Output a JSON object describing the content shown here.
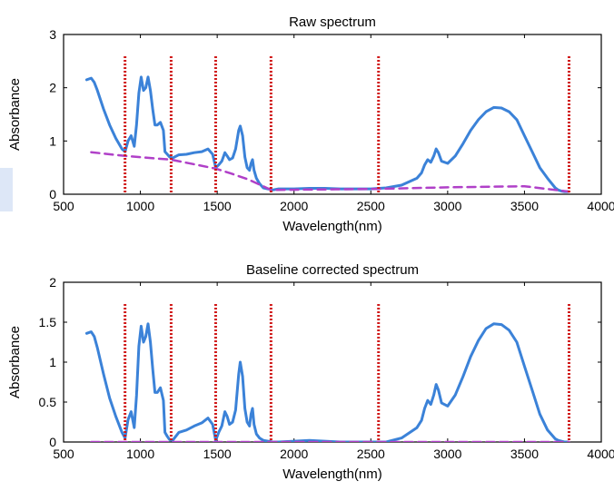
{
  "colors": {
    "spectrum": "#3b82d8",
    "baseline": "#b040c8",
    "markers": "#d01818",
    "axes": "#000000"
  },
  "chart_data": [
    {
      "type": "line",
      "title": "Raw spectrum",
      "xlabel": "Wavelength(nm)",
      "ylabel": "Absorbance",
      "xlim": [
        500,
        4000
      ],
      "ylim": [
        0,
        3
      ],
      "xticks": [
        500,
        1000,
        1500,
        2000,
        2500,
        3000,
        3500,
        4000
      ],
      "yticks": [
        0,
        1,
        2,
        3
      ],
      "xtick_labels": [
        "500",
        "1000",
        "1500",
        "2000",
        "2500",
        "3000",
        "3500",
        "4000"
      ],
      "ytick_labels": [
        "0",
        "1",
        "2",
        "3"
      ],
      "markers_x": [
        900,
        1200,
        1490,
        1850,
        2550,
        3790
      ],
      "series": [
        {
          "style": "solid",
          "color": "#3b82d8",
          "x": [
            650,
            680,
            700,
            720,
            760,
            800,
            840,
            880,
            900,
            920,
            940,
            960,
            975,
            990,
            1005,
            1020,
            1035,
            1050,
            1065,
            1080,
            1095,
            1110,
            1130,
            1150,
            1160,
            1175,
            1190,
            1210,
            1250,
            1300,
            1350,
            1400,
            1440,
            1470,
            1490,
            1510,
            1530,
            1550,
            1565,
            1580,
            1600,
            1620,
            1640,
            1650,
            1665,
            1680,
            1695,
            1710,
            1720,
            1730,
            1740,
            1755,
            1775,
            1800,
            1830,
            1860,
            1900,
            2000,
            2100,
            2200,
            2300,
            2400,
            2500,
            2600,
            2700,
            2800,
            2830,
            2850,
            2870,
            2890,
            2910,
            2925,
            2940,
            2960,
            3000,
            3050,
            3100,
            3150,
            3200,
            3250,
            3300,
            3350,
            3400,
            3450,
            3500,
            3550,
            3600,
            3650,
            3700,
            3720,
            3740,
            3760,
            3780
          ],
          "y": [
            2.15,
            2.18,
            2.1,
            1.95,
            1.6,
            1.3,
            1.05,
            0.85,
            0.8,
            1.0,
            1.1,
            0.9,
            1.3,
            1.9,
            2.2,
            1.95,
            2.0,
            2.2,
            1.95,
            1.6,
            1.3,
            1.3,
            1.35,
            1.2,
            0.8,
            0.75,
            0.7,
            0.68,
            0.74,
            0.75,
            0.78,
            0.8,
            0.85,
            0.75,
            0.5,
            0.55,
            0.62,
            0.78,
            0.72,
            0.65,
            0.68,
            0.85,
            1.2,
            1.28,
            1.1,
            0.7,
            0.5,
            0.45,
            0.58,
            0.65,
            0.45,
            0.3,
            0.2,
            0.12,
            0.1,
            0.08,
            0.1,
            0.1,
            0.11,
            0.11,
            0.1,
            0.1,
            0.1,
            0.12,
            0.17,
            0.3,
            0.4,
            0.55,
            0.65,
            0.6,
            0.72,
            0.85,
            0.78,
            0.62,
            0.58,
            0.72,
            0.95,
            1.2,
            1.4,
            1.55,
            1.63,
            1.62,
            1.55,
            1.4,
            1.1,
            0.8,
            0.5,
            0.3,
            0.12,
            0.08,
            0.06,
            0.05,
            0.05
          ]
        },
        {
          "style": "dashed",
          "color": "#b040c8",
          "x": [
            680,
            900,
            1200,
            1490,
            1600,
            1700,
            1800,
            1850,
            2550,
            3000,
            3500,
            3790
          ],
          "y": [
            0.79,
            0.72,
            0.65,
            0.48,
            0.38,
            0.28,
            0.15,
            0.08,
            0.1,
            0.13,
            0.15,
            0.05
          ]
        }
      ]
    },
    {
      "type": "line",
      "title": "Baseline corrected spectrum",
      "xlabel": "Wavelength(nm)",
      "ylabel": "Absorbance",
      "xlim": [
        500,
        4000
      ],
      "ylim": [
        0,
        2
      ],
      "xticks": [
        500,
        1000,
        1500,
        2000,
        2500,
        3000,
        3500,
        4000
      ],
      "yticks": [
        0,
        0.5,
        1,
        1.5,
        2
      ],
      "xtick_labels": [
        "500",
        "1000",
        "1500",
        "2000",
        "2500",
        "3000",
        "3500",
        "4000"
      ],
      "ytick_labels": [
        "0",
        "0.5",
        "1",
        "1.5",
        "2"
      ],
      "markers_x": [
        900,
        1200,
        1490,
        1850,
        2550,
        3790
      ],
      "series": [
        {
          "style": "solid",
          "color": "#3b82d8",
          "x": [
            650,
            680,
            700,
            720,
            760,
            800,
            840,
            880,
            900,
            920,
            940,
            960,
            975,
            990,
            1005,
            1020,
            1035,
            1050,
            1065,
            1080,
            1095,
            1110,
            1130,
            1150,
            1160,
            1175,
            1190,
            1210,
            1250,
            1300,
            1350,
            1400,
            1440,
            1470,
            1490,
            1510,
            1530,
            1550,
            1565,
            1580,
            1600,
            1620,
            1640,
            1650,
            1665,
            1680,
            1695,
            1710,
            1720,
            1730,
            1740,
            1755,
            1775,
            1800,
            1830,
            1860,
            1900,
            2000,
            2100,
            2200,
            2300,
            2400,
            2500,
            2600,
            2700,
            2800,
            2830,
            2850,
            2870,
            2890,
            2910,
            2925,
            2940,
            2960,
            3000,
            3050,
            3100,
            3150,
            3200,
            3250,
            3300,
            3350,
            3400,
            3450,
            3500,
            3550,
            3600,
            3650,
            3700,
            3720,
            3740,
            3760,
            3780
          ],
          "y": [
            1.36,
            1.38,
            1.32,
            1.18,
            0.85,
            0.55,
            0.32,
            0.12,
            0.05,
            0.28,
            0.38,
            0.18,
            0.58,
            1.2,
            1.45,
            1.25,
            1.32,
            1.48,
            1.25,
            0.92,
            0.62,
            0.62,
            0.68,
            0.52,
            0.12,
            0.07,
            0.03,
            0.02,
            0.12,
            0.15,
            0.2,
            0.24,
            0.3,
            0.22,
            0.02,
            0.12,
            0.2,
            0.38,
            0.32,
            0.22,
            0.25,
            0.4,
            0.85,
            1.0,
            0.82,
            0.42,
            0.25,
            0.2,
            0.35,
            0.42,
            0.22,
            0.1,
            0.05,
            0.02,
            0.01,
            0.0,
            0.0,
            0.01,
            0.02,
            0.01,
            0.0,
            0.0,
            0.0,
            0.0,
            0.05,
            0.18,
            0.27,
            0.42,
            0.52,
            0.47,
            0.59,
            0.72,
            0.65,
            0.49,
            0.45,
            0.59,
            0.82,
            1.07,
            1.27,
            1.42,
            1.48,
            1.47,
            1.4,
            1.25,
            0.95,
            0.65,
            0.35,
            0.15,
            0.04,
            0.02,
            0.01,
            0.0,
            0.0
          ]
        },
        {
          "style": "dashed",
          "color": "#b040c8",
          "x": [
            680,
            3790
          ],
          "y": [
            0,
            0
          ]
        }
      ]
    }
  ]
}
